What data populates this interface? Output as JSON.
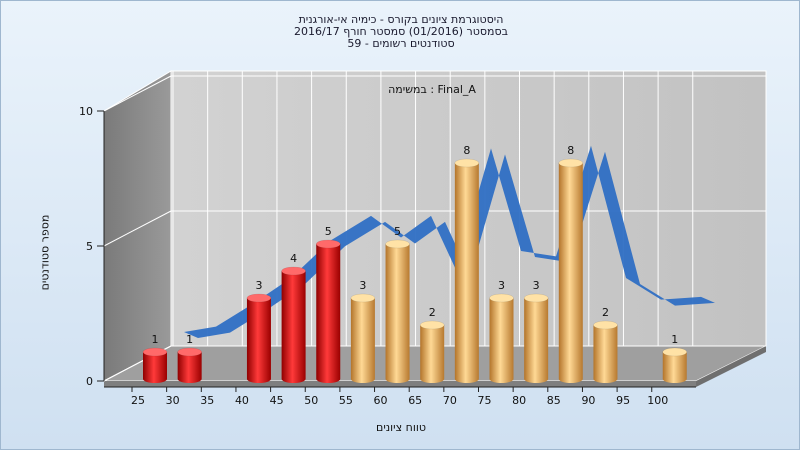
{
  "chart_data": {
    "type": "bar",
    "title_lines": [
      "היסטוגרמת ציונים בקורס - כימיה אי-אורגנית",
      "בסמסטר  (01/2016)  סמסטר חורף 2016/17",
      "סטודנטים רשומים - 59"
    ],
    "annotation": "במשימה : Final_A",
    "xlabel": "טווח ציונים",
    "ylabel": "מספר סטודנטים",
    "x_ticks": [
      "25",
      "30",
      "35",
      "40",
      "45",
      "50",
      "55",
      "60",
      "65",
      "70",
      "75",
      "80",
      "85",
      "90",
      "95",
      "100"
    ],
    "y_ticks": [
      "0",
      "5",
      "10"
    ],
    "ylim": [
      0,
      10
    ],
    "bars": [
      {
        "x": 25,
        "value": 1,
        "label": "1",
        "color": "red"
      },
      {
        "x": 30,
        "value": 1,
        "label": "1",
        "color": "red"
      },
      {
        "x": 40,
        "value": 3,
        "label": "3",
        "color": "red"
      },
      {
        "x": 45,
        "value": 4,
        "label": "4",
        "color": "red"
      },
      {
        "x": 50,
        "value": 5,
        "label": "5",
        "color": "red"
      },
      {
        "x": 55,
        "value": 3,
        "label": "3",
        "color": "gold"
      },
      {
        "x": 60,
        "value": 5,
        "label": "5",
        "color": "gold"
      },
      {
        "x": 65,
        "value": 2,
        "label": "2",
        "color": "gold"
      },
      {
        "x": 70,
        "value": 8,
        "label": "8",
        "color": "gold"
      },
      {
        "x": 75,
        "value": 3,
        "label": "3",
        "color": "gold"
      },
      {
        "x": 80,
        "value": 3,
        "label": "3",
        "color": "gold"
      },
      {
        "x": 85,
        "value": 8,
        "label": "8",
        "color": "gold"
      },
      {
        "x": 90,
        "value": 2,
        "label": "2",
        "color": "gold"
      },
      {
        "x": 100,
        "value": 1,
        "label": "1",
        "color": "gold"
      }
    ],
    "ribbon": {
      "color": "#2f6fc4",
      "shadow": "#666666"
    },
    "grid": true,
    "legend": "none"
  }
}
